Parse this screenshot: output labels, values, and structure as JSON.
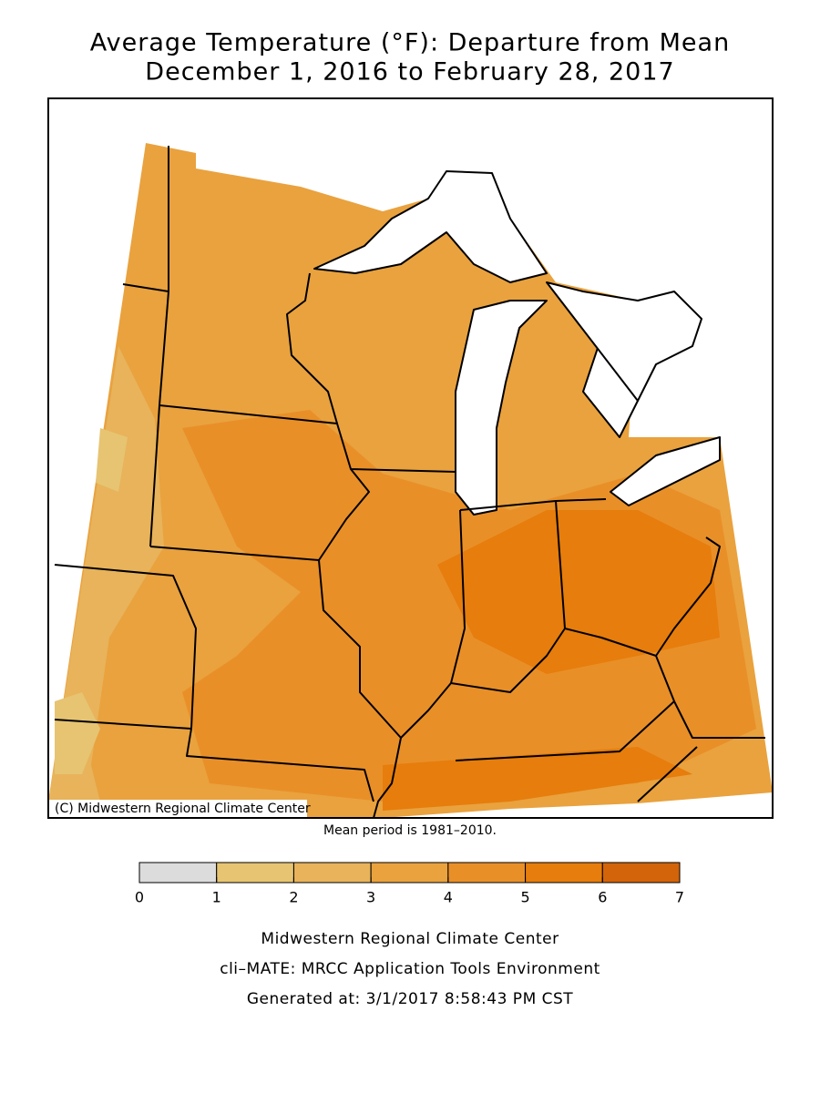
{
  "title": [
    "Average Temperature (°F): Departure from Mean",
    "December 1, 2016 to February 28, 2017"
  ],
  "map": {
    "credit": "(C) Midwestern Regional Climate Center"
  },
  "note": "Mean period is 1981–2010.",
  "legend": {
    "ticks": [
      0,
      1,
      2,
      3,
      4,
      5,
      6,
      7
    ],
    "colors": [
      "#dcdcdc",
      "#e6c472",
      "#e8b35a",
      "#e9a23e",
      "#e98f28",
      "#e67d0c",
      "#d3640a"
    ]
  },
  "footer": [
    "Midwestern Regional Climate Center",
    "cli–MATE: MRCC Application Tools Environment",
    "Generated at: 3/1/2017 8:58:43 PM CST"
  ]
}
